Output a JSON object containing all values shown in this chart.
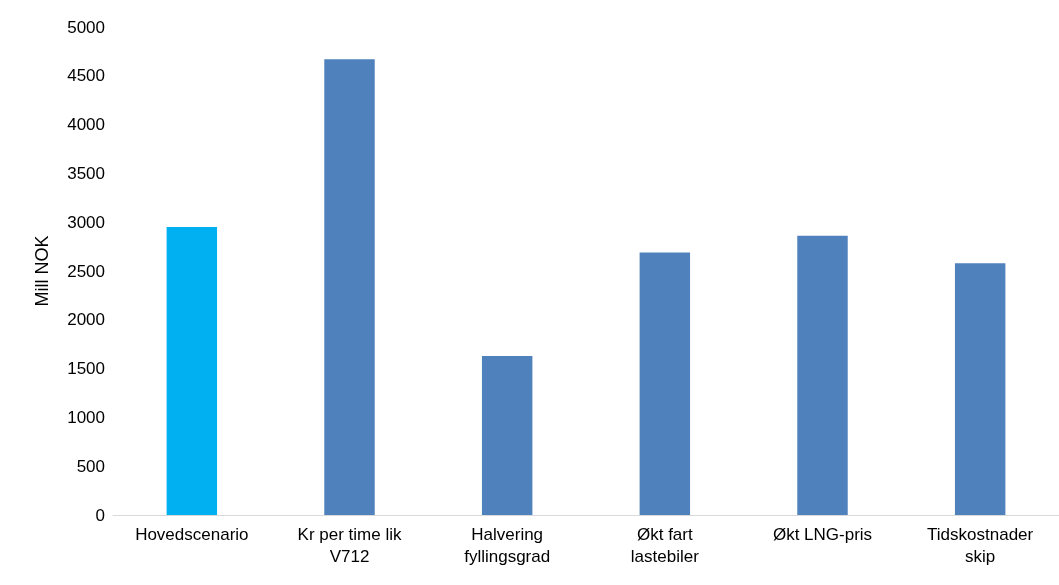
{
  "chart_data": {
    "type": "bar",
    "ylabel": "Mill NOK",
    "categories": [
      "Hovedscenario",
      "Kr per time lik V712",
      "Halvering fyllingsgrad",
      "Økt fart lastebiler",
      "Økt LNG-pris",
      "Tidskostnader skip"
    ],
    "values": [
      2950,
      4670,
      1630,
      2690,
      2860,
      2580
    ],
    "colors": [
      "#00b0f0",
      "#4f81bd",
      "#4f81bd",
      "#4f81bd",
      "#4f81bd",
      "#4f81bd"
    ],
    "ylim": [
      0,
      5000
    ],
    "yticks": [
      0,
      500,
      1000,
      1500,
      2000,
      2500,
      3000,
      3500,
      4000,
      4500,
      5000
    ],
    "grid": false
  }
}
